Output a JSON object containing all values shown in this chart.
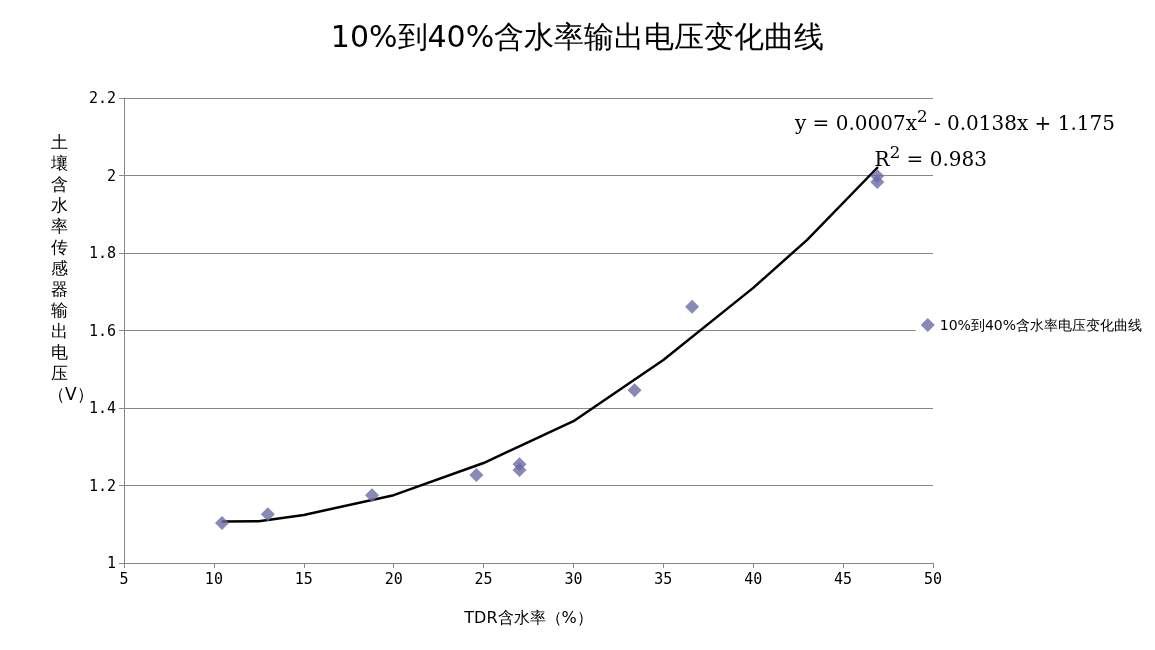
{
  "chart_data": {
    "type": "scatter",
    "title": "10%到40%含水率输出电压变化曲线",
    "xlabel": "TDR含水率（%）",
    "ylabel": "土壤含水率传感器输出电压（V）",
    "series": [
      {
        "name": "10%到40%含水率电压变化曲线",
        "color": "#6a6aa8",
        "marker": "diamond",
        "x": [
          10.45,
          13.0,
          18.8,
          24.6,
          27.0,
          27.0,
          33.4,
          36.6,
          46.9,
          46.9
        ],
        "values": [
          1.103,
          1.126,
          1.175,
          1.227,
          1.255,
          1.24,
          1.446,
          1.661,
          1.999,
          1.983
        ]
      },
      {
        "type": "line",
        "color": "#000000",
        "marker": "none",
        "line_style": "solid",
        "x": [
          10.5,
          12.5,
          15,
          20,
          25,
          30,
          35,
          40,
          43,
          46.9
        ],
        "values": [
          1.107,
          1.108,
          1.124,
          1.175,
          1.258,
          1.366,
          1.524,
          1.71,
          1.834,
          2.02
        ]
      }
    ],
    "annotations": [
      "y = 0.0007x$^{2}$ - 0.0138x + 1.175",
      "R$^{2}$ = 0.983"
    ],
    "xlim": [
      5,
      50
    ],
    "xticks": [
      5,
      10,
      15,
      20,
      25,
      30,
      35,
      40,
      45,
      50
    ],
    "ylim": [
      1,
      2.2
    ],
    "yticks": [
      1,
      1.2,
      1.4,
      1.6,
      1.8,
      2,
      2.2
    ],
    "grid": "y",
    "legend": "right"
  }
}
